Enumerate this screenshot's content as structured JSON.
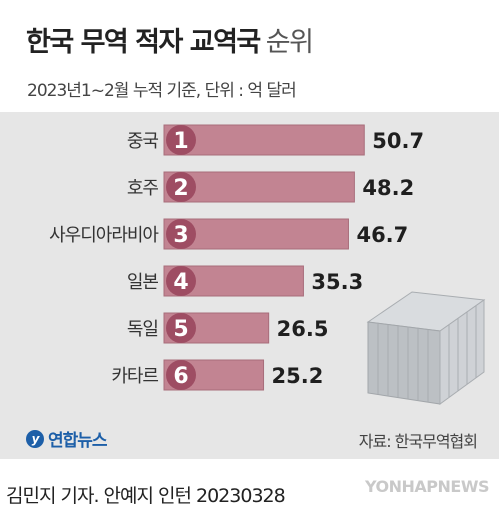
{
  "title": {
    "main": "한국 무역 적자 교역국",
    "suffix": "순위"
  },
  "subtitle": "2023년1~2월 누적 기준, 단위 : 억 달러",
  "source": "자료: 한국무역협회",
  "logo": {
    "mark": "y",
    "text": "연합뉴스"
  },
  "byline": "김민지 기자. 안예지 인턴  20230328",
  "watermark": "YONHAPNEWS",
  "colors": {
    "bar": "#c28492",
    "bar_stroke": "#a86d7b",
    "badge": "#9e4d63",
    "panel": "#e6e6e6"
  },
  "chart_data": {
    "type": "bar",
    "orientation": "horizontal",
    "categories": [
      "중국",
      "호주",
      "사우디아라비아",
      "일본",
      "독일",
      "카타르"
    ],
    "ranks": [
      "1",
      "2",
      "3",
      "4",
      "5",
      "6"
    ],
    "values": [
      50.7,
      48.2,
      46.7,
      35.3,
      26.5,
      25.2
    ],
    "value_labels": [
      "50.7",
      "48.2",
      "46.7",
      "35.3",
      "26.5",
      "25.2"
    ],
    "title": "한국 무역 적자 교역국 순위",
    "xlabel": "",
    "ylabel": "",
    "xlim": [
      0,
      60
    ],
    "grid": false
  }
}
